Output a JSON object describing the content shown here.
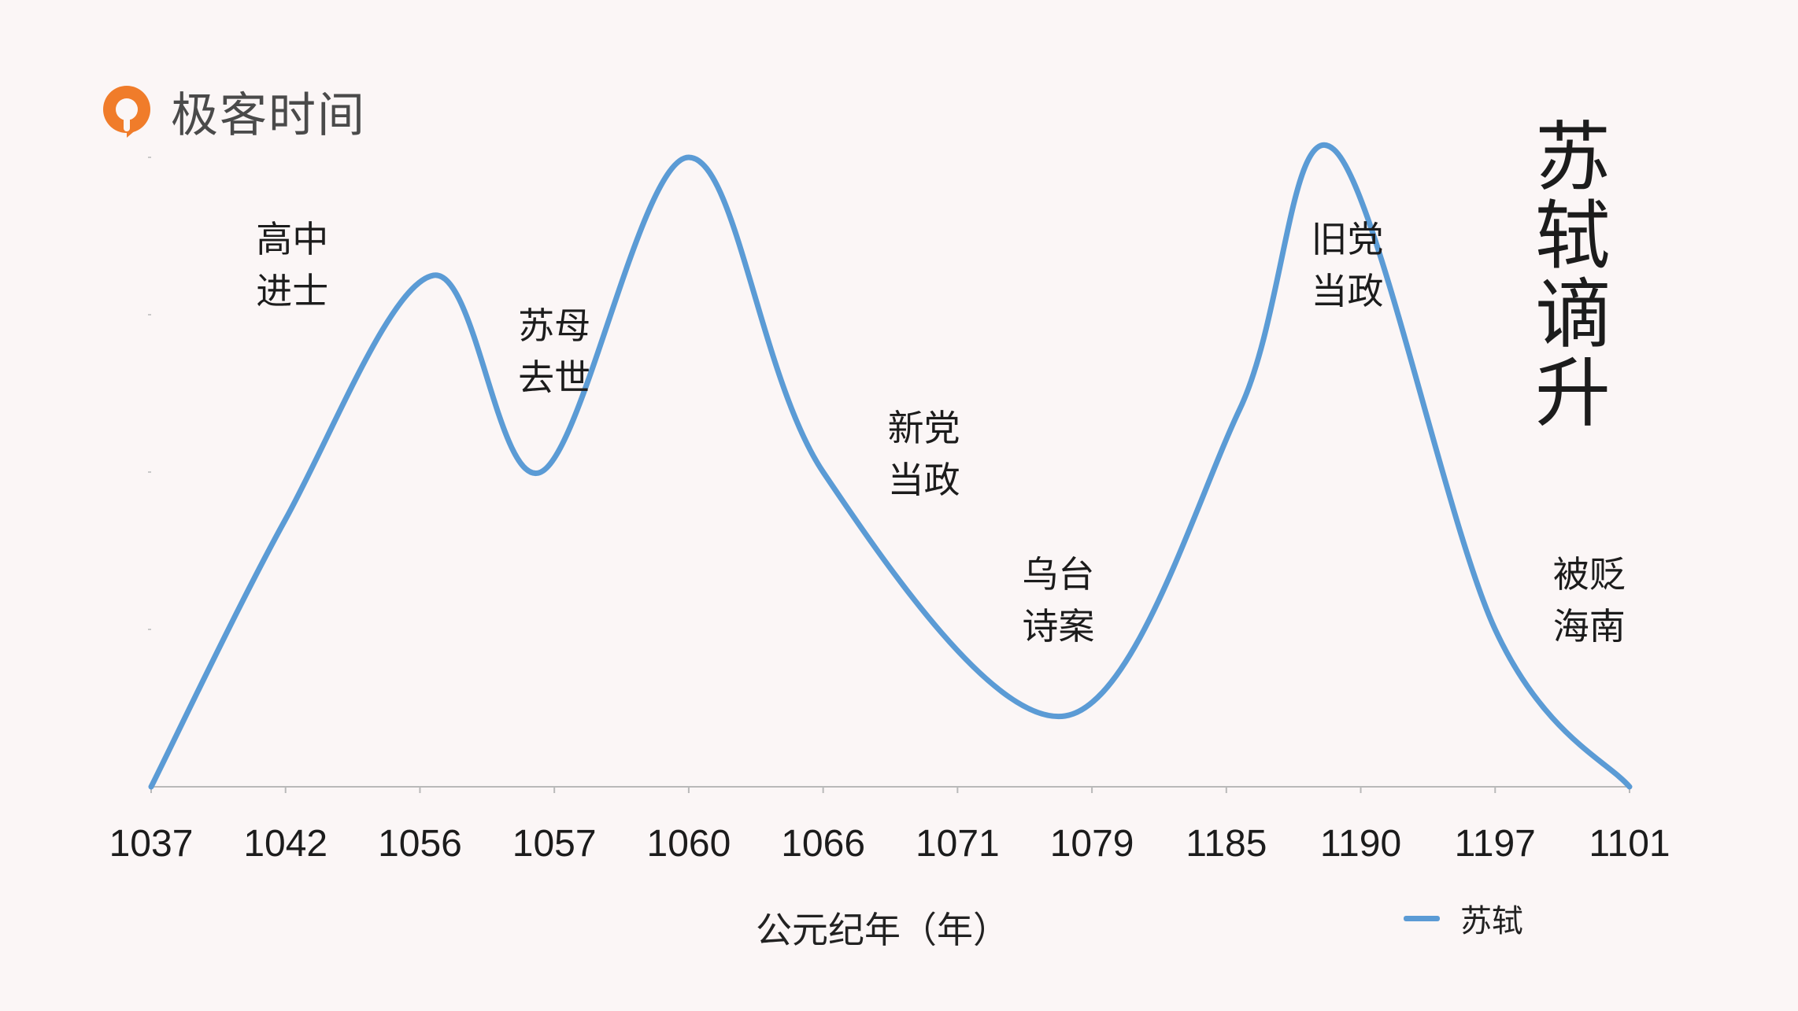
{
  "brand": {
    "name": "极客时间",
    "color": "#f07c2a"
  },
  "title": {
    "line1": "苏轼",
    "line2": "谪升"
  },
  "chart_data": {
    "type": "line",
    "smooth": true,
    "categories": [
      "1037",
      "1042",
      "1056",
      "1057",
      "1060",
      "1066",
      "1071",
      "1079",
      "1185",
      "1190",
      "1197",
      "1101"
    ],
    "xlabel": "公元纪年（年）",
    "ylabel": "",
    "ylim": [
      0,
      4
    ],
    "y_tick_labels_shown": false,
    "grid": false,
    "legend_position": "bottom-right",
    "series": [
      {
        "name": "苏轼",
        "color": "#5b9bd5",
        "points": [
          {
            "x": 0,
            "y": 0
          },
          {
            "x": 1,
            "y": 1.7
          },
          {
            "x": 2.1,
            "y": 3.25
          },
          {
            "x": 2.9,
            "y": 2.0
          },
          {
            "x": 4,
            "y": 4.0
          },
          {
            "x": 5,
            "y": 2.0
          },
          {
            "x": 6.8,
            "y": 0.45
          },
          {
            "x": 8.1,
            "y": 2.4
          },
          {
            "x": 8.8,
            "y": 4.05
          },
          {
            "x": 10,
            "y": 1.0
          },
          {
            "x": 11,
            "y": 0
          }
        ]
      }
    ],
    "annotations": [
      {
        "line1": "高中",
        "line2": "进士",
        "x": 1.05,
        "y": 3.4
      },
      {
        "line1": "苏母",
        "line2": "去世",
        "x": 3.0,
        "y": 2.85
      },
      {
        "line1": "新党",
        "line2": "当政",
        "x": 5.75,
        "y": 2.2
      },
      {
        "line1": "乌台",
        "line2": "诗案",
        "x": 6.75,
        "y": 1.27
      },
      {
        "line1": "旧党",
        "line2": "当政",
        "x": 8.9,
        "y": 3.4
      },
      {
        "line1": "被贬",
        "line2": "海南",
        "x": 10.7,
        "y": 1.27
      }
    ],
    "legend": [
      "苏轼"
    ]
  }
}
